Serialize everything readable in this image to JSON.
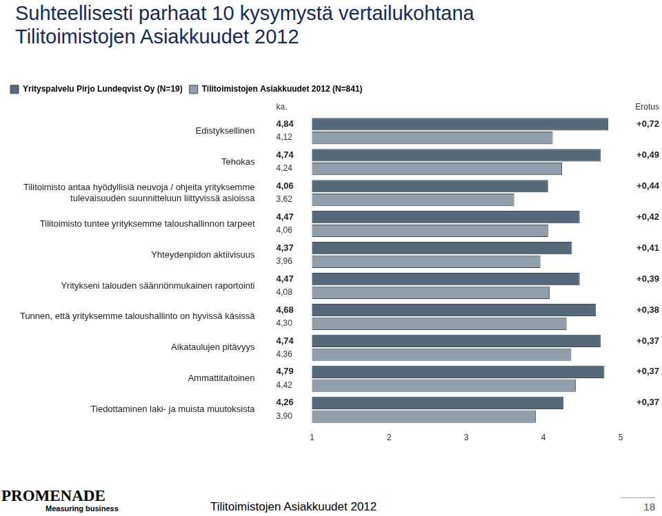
{
  "chart_data": {
    "type": "bar",
    "orientation": "horizontal",
    "title": "Suhteellisesti parhaat 10 kysymystä vertailukohtana",
    "subtitle": "Tilitoimistojen Asiakkuudet 2012",
    "categories": [
      "Edistyksellinen",
      "Tehokas",
      "Tilitoimisto antaa hyödyllisiä neuvoja / ohjeita yrityksemme tulevaisuuden suunnitteluun liittyvissä asioissa",
      "Tilitoimisto tuntee yrityksemme taloushallinnon tarpeet",
      "Yhteydenpidon aktiivisuus",
      "Yritykseni talouden säännönmukainen raportointi",
      "Tunnen, että yrityksemme taloushallinto on hyvissä käsissä",
      "Aikataulujen pitävyys",
      "Ammattitaitoinen",
      "Tiedottaminen laki- ja muista muutoksista"
    ],
    "series": [
      {
        "name": "Yrityspalvelu Pirjo Lundeqvist Oy (N=19)",
        "color": "#55697a",
        "values": [
          4.84,
          4.74,
          4.06,
          4.47,
          4.37,
          4.47,
          4.68,
          4.74,
          4.79,
          4.26
        ],
        "value_labels": [
          "4,84",
          "4,74",
          "4,06",
          "4,47",
          "4,37",
          "4,47",
          "4,68",
          "4,74",
          "4,79",
          "4,26"
        ]
      },
      {
        "name": "Tilitoimistojen Asiakkuudet 2012 (N=841)",
        "color": "#909fab",
        "values": [
          4.12,
          4.24,
          3.62,
          4.06,
          3.96,
          4.08,
          4.3,
          4.36,
          4.42,
          3.9
        ],
        "value_labels": [
          "4,12",
          "4,24",
          "3,62",
          "4,06",
          "3,96",
          "4,08",
          "4,30",
          "4,36",
          "4,42",
          "3,90"
        ]
      }
    ],
    "xlim": [
      1,
      5
    ],
    "xticks": [
      1,
      2,
      3,
      4,
      5
    ],
    "grid": false,
    "legend": "top-left",
    "data_labels": true,
    "value_column_title": "ka.",
    "annotations": {
      "title": "Erotus",
      "labels": [
        "+0,72",
        "+0,49",
        "+0,44",
        "+0,42",
        "+0,41",
        "+0,39",
        "+0,38",
        "+0,37",
        "+0,37",
        "+0,37"
      ]
    }
  },
  "footer": {
    "text": "Tilitoimistojen Asiakkuudet 2012",
    "page_number": "18",
    "logo": "PROMENADE",
    "logo_tagline": "Measuring business"
  }
}
